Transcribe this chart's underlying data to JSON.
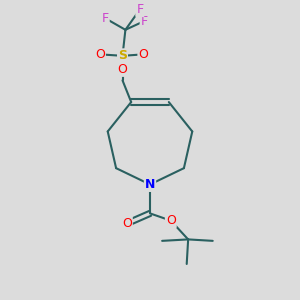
{
  "background_color": "#dcdcdc",
  "bond_color": "#2a6060",
  "bond_width": 1.5,
  "atom_colors": {
    "F": "#cc44cc",
    "O": "#ff0000",
    "S": "#ccaa00",
    "N": "#0000ff",
    "C": "#2a6060"
  },
  "font_size": 8.5,
  "figsize": [
    3.0,
    3.0
  ],
  "dpi": 100
}
